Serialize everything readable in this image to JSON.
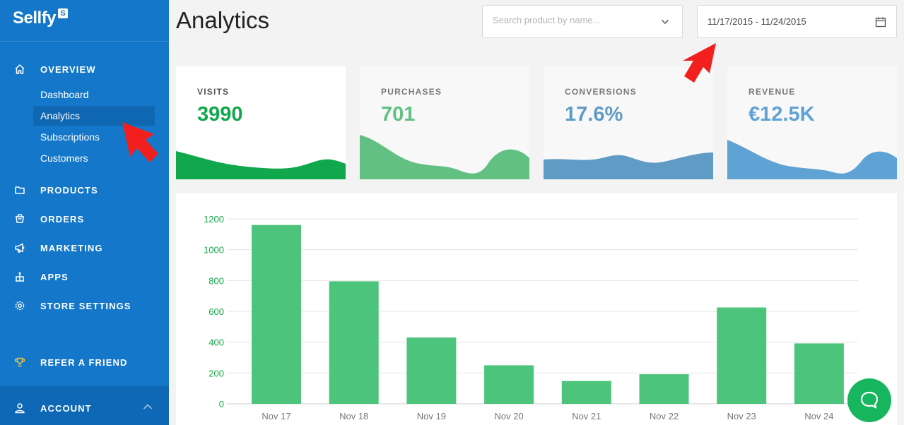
{
  "brand": {
    "name": "Sellfy",
    "badge": "S"
  },
  "sidebar": {
    "overview": {
      "label": "OVERVIEW",
      "icon": "home-icon"
    },
    "sub_items": [
      {
        "label": "Dashboard",
        "active": false
      },
      {
        "label": "Analytics",
        "active": true
      },
      {
        "label": "Subscriptions",
        "active": false
      },
      {
        "label": "Customers",
        "active": false
      }
    ],
    "sections": [
      {
        "label": "PRODUCTS",
        "icon": "folder-icon"
      },
      {
        "label": "ORDERS",
        "icon": "basket-icon"
      },
      {
        "label": "MARKETING",
        "icon": "megaphone-icon"
      },
      {
        "label": "APPS",
        "icon": "apps-icon"
      },
      {
        "label": "STORE SETTINGS",
        "icon": "gear-icon"
      }
    ],
    "refer": {
      "label": "REFER A FRIEND",
      "icon": "trophy-icon"
    },
    "account": {
      "label": "ACCOUNT",
      "icon": "user-icon"
    }
  },
  "header": {
    "title": "Analytics",
    "search_placeholder": "Search product by name...",
    "date_range": "11/17/2015 - 11/24/2015"
  },
  "stats": [
    {
      "label": "VISITS",
      "value": "3990",
      "color": "#11a84d"
    },
    {
      "label": "PURCHASES",
      "value": "701",
      "color": "#62c083"
    },
    {
      "label": "CONVERSIONS",
      "value": "17.6%",
      "color": "#5f9bc4"
    },
    {
      "label": "REVENUE",
      "value": "€12.5K",
      "color": "#5fa3d4"
    }
  ],
  "chart_data": {
    "type": "bar",
    "title": "",
    "xlabel": "",
    "ylabel": "",
    "categories": [
      "Nov 17",
      "Nov 18",
      "Nov 19",
      "Nov 20",
      "Nov 21",
      "Nov 22",
      "Nov 23",
      "Nov 24"
    ],
    "values": [
      1160,
      795,
      430,
      250,
      148,
      192,
      625,
      392
    ],
    "ylim": [
      0,
      1200
    ],
    "yticks": [
      0,
      200,
      400,
      600,
      800,
      1000,
      1200
    ],
    "grid": true,
    "bar_color": "#4cc47b",
    "tick_color": "#18a84a"
  }
}
